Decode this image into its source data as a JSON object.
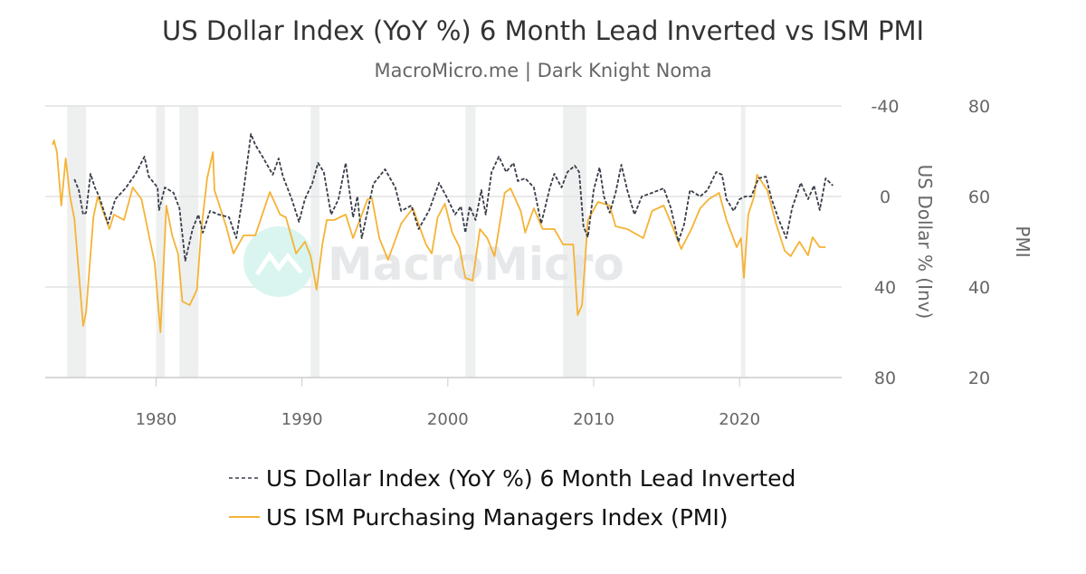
{
  "chart_data": {
    "type": "line",
    "title": "US Dollar Index (YoY %) 6 Month Lead Inverted vs ISM PMI",
    "subtitle": "MacroMicro.me | Dark Knight Noma",
    "watermark": "MacroMicro",
    "xlim": [
      1972.4,
      2027.0
    ],
    "x_ticks": [
      "1980",
      "1990",
      "2000",
      "2010",
      "2020"
    ],
    "left_axis": {
      "label": "US Dollar % (Inv)",
      "inverted": true,
      "ylim": [
        -40,
        80
      ],
      "ticks": [
        "-40",
        "0",
        "40",
        "80"
      ]
    },
    "right_axis": {
      "label": "PMI",
      "ylim": [
        20,
        80
      ],
      "ticks": [
        "80",
        "60",
        "40",
        "20"
      ]
    },
    "grid": true,
    "legend_position": "bottom",
    "recessions": [
      [
        1973.9,
        1975.2
      ],
      [
        1980.0,
        1980.6
      ],
      [
        1981.6,
        1982.9
      ],
      [
        1990.6,
        1991.2
      ],
      [
        2001.2,
        2001.9
      ],
      [
        2007.9,
        2009.5
      ],
      [
        2020.1,
        2020.4
      ]
    ],
    "series": [
      {
        "name": "US Dollar Index (YoY %) 6 Month Lead Inverted",
        "axis": "left",
        "color": "#3a3d4a",
        "style": "dashed",
        "x": [
          1974.4,
          1974.7,
          1975.0,
          1975.2,
          1975.5,
          1975.8,
          1976.1,
          1976.7,
          1977.2,
          1977.9,
          1978.6,
          1979.2,
          1979.5,
          1980.1,
          1980.2,
          1980.6,
          1981.2,
          1981.6,
          1982.0,
          1982.5,
          1982.9,
          1983.2,
          1983.7,
          1984.3,
          1985.0,
          1985.5,
          1986.0,
          1986.5,
          1986.8,
          1987.3,
          1988.0,
          1988.4,
          1988.7,
          1989.3,
          1989.8,
          1990.2,
          1990.7,
          1991.1,
          1991.5,
          1992.0,
          1992.5,
          1993.0,
          1993.5,
          1993.8,
          1994.1,
          1994.9,
          1995.7,
          1996.4,
          1996.8,
          1997.5,
          1998.0,
          1998.7,
          1999.4,
          2000.0,
          2000.5,
          2000.9,
          2001.2,
          2001.5,
          2001.9,
          2002.3,
          2002.6,
          2003.0,
          2003.5,
          2004.0,
          2004.5,
          2004.8,
          2005.3,
          2005.9,
          2006.4,
          2007.0,
          2007.3,
          2007.8,
          2008.2,
          2008.7,
          2009.0,
          2009.3,
          2009.6,
          2010.0,
          2010.4,
          2010.7,
          2011.1,
          2011.5,
          2011.9,
          2012.3,
          2012.8,
          2013.3,
          2014.0,
          2014.8,
          2015.3,
          2015.8,
          2016.2,
          2016.6,
          2017.3,
          2017.8,
          2018.4,
          2018.8,
          2019.1,
          2019.6,
          2020.0,
          2020.4,
          2020.8,
          2021.3,
          2021.8,
          2022.2,
          2022.7,
          2023.2,
          2023.6,
          2024.2,
          2024.7,
          2025.1,
          2025.5,
          2025.9,
          2026.4
        ],
        "y": [
          -7.6,
          -2.8,
          8,
          7.2,
          -10,
          -4,
          0,
          12,
          1.2,
          -3.6,
          -10,
          -17.6,
          -8.8,
          -4,
          6,
          -4,
          -1.6,
          5.2,
          28.4,
          14.4,
          8,
          16,
          6.4,
          8,
          9.2,
          18.4,
          -2.8,
          -27.6,
          -22.8,
          -17.6,
          -9.6,
          -16.8,
          -8.8,
          1.2,
          11.2,
          1.2,
          -5.6,
          -14.8,
          -10.8,
          8,
          1.2,
          -14.8,
          9.2,
          0,
          18.4,
          -5.6,
          -12,
          -4,
          6.4,
          4,
          14.4,
          6.4,
          -6,
          1.2,
          8,
          4.4,
          16,
          4.4,
          10.4,
          -2.8,
          8,
          -10.8,
          -17.6,
          -10.8,
          -14.8,
          -6.8,
          -8,
          -4,
          12,
          -4,
          -10,
          -4,
          -10.8,
          -13.6,
          -10.8,
          13.2,
          18,
          -2.8,
          -12.8,
          0,
          7.2,
          -1.6,
          -14,
          -2.8,
          8,
          0,
          -1.6,
          -3.6,
          5.2,
          20,
          12.4,
          -2.8,
          0,
          -2.8,
          -10.8,
          -9.6,
          1.2,
          6.4,
          1.2,
          0,
          0,
          -8,
          -8.8,
          1.2,
          10.4,
          18.4,
          5.2,
          -6,
          1.2,
          -4.8,
          6,
          -8,
          -4.8
        ]
      },
      {
        "name": "US ISM Purchasing Managers Index (PMI)",
        "axis": "right",
        "color": "#f5b335",
        "style": "solid",
        "x": [
          1972.9,
          1973.0,
          1973.2,
          1973.5,
          1973.8,
          1974.1,
          1974.4,
          1975.0,
          1975.2,
          1975.7,
          1976.0,
          1976.8,
          1977.1,
          1977.8,
          1978.4,
          1979.0,
          1979.6,
          1979.9,
          1980.3,
          1980.7,
          1981.1,
          1981.5,
          1981.8,
          1982.3,
          1982.8,
          1983.1,
          1983.5,
          1983.9,
          1984.0,
          1984.8,
          1985.3,
          1986.0,
          1986.8,
          1987.8,
          1988.5,
          1988.9,
          1989.6,
          1990.2,
          1990.6,
          1991.0,
          1991.4,
          1991.7,
          1992.2,
          1993.0,
          1993.5,
          1994.5,
          1994.8,
          1995.3,
          1995.9,
          1996.8,
          1997.6,
          1998.5,
          1998.9,
          1999.3,
          1999.8,
          2000.3,
          2000.8,
          2001.2,
          2001.7,
          2002.2,
          2002.7,
          2003.2,
          2003.9,
          2004.3,
          2005.0,
          2005.3,
          2005.9,
          2006.5,
          2007.3,
          2007.9,
          2008.6,
          2008.9,
          2009.2,
          2009.6,
          2010.3,
          2011.1,
          2011.5,
          2012.3,
          2013.4,
          2014.0,
          2014.8,
          2015.4,
          2016.0,
          2016.7,
          2017.3,
          2017.9,
          2018.6,
          2019.1,
          2019.8,
          2020.1,
          2020.3,
          2020.6,
          2021.0,
          2021.2,
          2021.9,
          2022.5,
          2023.1,
          2023.5,
          2024.1,
          2024.7,
          2025.0,
          2025.5,
          2025.9
        ],
        "y": [
          71.4,
          72.4,
          69.8,
          58,
          68.4,
          60,
          55,
          31.4,
          34.4,
          55.4,
          60,
          52.8,
          56,
          54.8,
          62,
          59.4,
          50,
          45.4,
          30,
          58,
          51.4,
          47.4,
          36.8,
          36,
          39.4,
          52.8,
          64,
          69.8,
          61.4,
          53.4,
          47.4,
          51.4,
          51.4,
          61,
          56,
          55.4,
          47.4,
          50,
          46.8,
          39.4,
          49.4,
          54.8,
          54.8,
          56,
          50.8,
          59.4,
          59.6,
          50.8,
          46,
          54,
          57.4,
          49.4,
          47.4,
          55.4,
          58.4,
          52,
          48.8,
          42,
          41.4,
          52.8,
          50.8,
          46.8,
          60.8,
          61.8,
          56.8,
          52,
          57.4,
          52.8,
          52.8,
          49.4,
          49.4,
          33.8,
          36,
          54.8,
          58.8,
          58,
          53.4,
          52.8,
          50.8,
          56.8,
          58,
          53.4,
          48.4,
          52.8,
          57.4,
          59.4,
          60.8,
          54.8,
          48.8,
          50.8,
          42,
          56,
          60,
          64.8,
          61.4,
          54,
          48,
          46.8,
          50,
          47,
          51,
          48.8,
          48.8
        ]
      }
    ]
  }
}
